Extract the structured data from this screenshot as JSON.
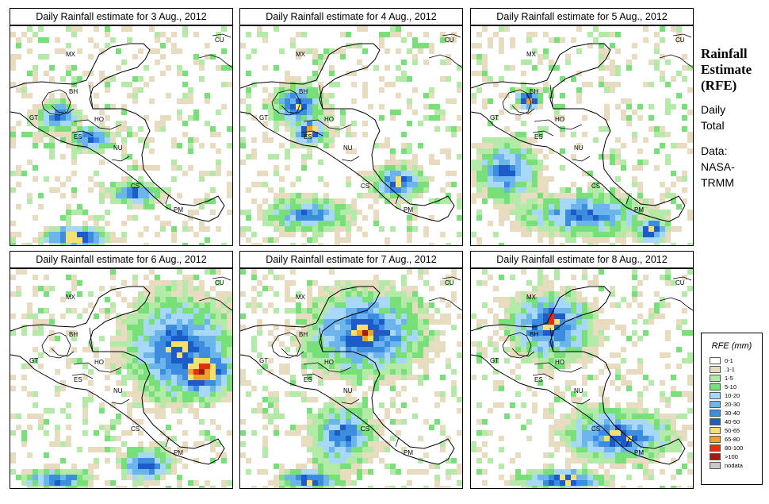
{
  "panels": [
    {
      "title": "Daily Rainfall estimate for  3 Aug., 2012",
      "day": 3
    },
    {
      "title": "Daily Rainfall estimate for  4 Aug., 2012",
      "day": 4
    },
    {
      "title": "Daily Rainfall estimate for  5 Aug., 2012",
      "day": 5
    },
    {
      "title": "Daily Rainfall estimate for  6 Aug., 2012",
      "day": 6
    },
    {
      "title": "Daily Rainfall estimate for  7 Aug., 2012",
      "day": 7
    },
    {
      "title": "Daily Rainfall estimate for  8 Aug., 2012",
      "day": 8
    }
  ],
  "map_labels": [
    "CU",
    "MX",
    "BH",
    "GT",
    "HO",
    "ES",
    "NU",
    "CS",
    "PM"
  ],
  "sidebar": {
    "title_lines": [
      "Rainfall",
      "Estimate",
      "(RFE)"
    ],
    "subtitle_lines": [
      "Daily",
      "Total"
    ],
    "source_lines": [
      "Data:",
      "NASA-",
      "TRMM"
    ]
  },
  "legend": {
    "title": "RFE (mm)",
    "items": [
      {
        "label": "0-1",
        "color": "#ffffff"
      },
      {
        "label": ".1-1",
        "color": "#e8dcc0"
      },
      {
        "label": "1-5",
        "color": "#b4eaa8"
      },
      {
        "label": "5-10",
        "color": "#78e078"
      },
      {
        "label": "10-20",
        "color": "#a8d8f8"
      },
      {
        "label": "20-30",
        "color": "#6cb4ec"
      },
      {
        "label": "30-40",
        "color": "#3c8ce0"
      },
      {
        "label": "40-50",
        "color": "#1c5cc8"
      },
      {
        "label": "50-65",
        "color": "#f8e070"
      },
      {
        "label": "65-80",
        "color": "#f0a030"
      },
      {
        "label": "80-100",
        "color": "#e03010"
      },
      {
        "label": ">100",
        "color": "#9c1c10"
      },
      {
        "label": "nodata",
        "color": "#c8c8c8"
      }
    ]
  },
  "rainfall_features": {
    "3": [
      [
        0.28,
        0.95,
        0.15,
        0.05,
        5
      ],
      [
        0.35,
        0.5,
        0.1,
        0.06,
        3
      ],
      [
        0.55,
        0.75,
        0.12,
        0.05,
        3
      ],
      [
        0.2,
        0.4,
        0.1,
        0.08,
        2
      ]
    ],
    "4": [
      [
        0.3,
        0.47,
        0.08,
        0.06,
        5
      ],
      [
        0.25,
        0.35,
        0.12,
        0.1,
        3
      ],
      [
        0.7,
        0.7,
        0.12,
        0.08,
        3
      ],
      [
        0.3,
        0.85,
        0.2,
        0.08,
        2
      ]
    ],
    "5": [
      [
        0.25,
        0.32,
        0.06,
        0.05,
        5
      ],
      [
        0.8,
        0.92,
        0.07,
        0.06,
        5
      ],
      [
        0.5,
        0.85,
        0.3,
        0.1,
        2
      ],
      [
        0.15,
        0.65,
        0.15,
        0.15,
        2
      ]
    ],
    "6": [
      [
        0.85,
        0.45,
        0.15,
        0.12,
        6
      ],
      [
        0.75,
        0.35,
        0.25,
        0.25,
        3
      ],
      [
        0.2,
        0.95,
        0.15,
        0.05,
        3
      ],
      [
        0.6,
        0.88,
        0.12,
        0.08,
        3
      ]
    ],
    "7": [
      [
        0.55,
        0.28,
        0.12,
        0.08,
        6
      ],
      [
        0.55,
        0.28,
        0.28,
        0.2,
        3
      ],
      [
        0.3,
        0.95,
        0.15,
        0.05,
        4
      ],
      [
        0.45,
        0.75,
        0.15,
        0.15,
        2
      ]
    ],
    "8": [
      [
        0.35,
        0.22,
        0.08,
        0.08,
        6
      ],
      [
        0.35,
        0.25,
        0.2,
        0.16,
        3
      ],
      [
        0.65,
        0.75,
        0.25,
        0.12,
        3
      ],
      [
        0.4,
        0.95,
        0.2,
        0.05,
        4
      ]
    ]
  }
}
